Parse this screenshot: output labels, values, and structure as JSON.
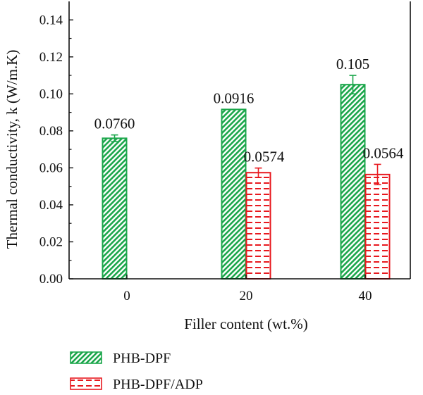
{
  "chart_data": {
    "type": "bar",
    "categories": [
      "0",
      "20",
      "40"
    ],
    "xlabel": "Filler content (wt.%)",
    "ylabel": "Thermal conductivity, k (W/m.K)",
    "ylim": [
      0,
      0.15
    ],
    "yticks": [
      "0.00",
      "0.02",
      "0.04",
      "0.06",
      "0.08",
      "0.10",
      "0.12",
      "0.14"
    ],
    "grid": false,
    "legend_position": "bottom-left",
    "series": [
      {
        "name": "PHB-DPF",
        "values": [
          0.076,
          0.0916,
          0.105
        ],
        "errors": [
          0.0018,
          null,
          0.005
        ],
        "labels": [
          "0.0760",
          "0.0916",
          "0.105"
        ],
        "color": "#1aa64a",
        "pattern": "diagonal-hatch"
      },
      {
        "name": "PHB-DPF/ADP",
        "values": [
          null,
          0.0574,
          0.0564
        ],
        "errors": [
          null,
          0.0025,
          0.0055
        ],
        "labels": [
          null,
          "0.0574",
          "0.0564"
        ],
        "color": "#e8191f",
        "pattern": "horizontal-dash"
      }
    ]
  }
}
